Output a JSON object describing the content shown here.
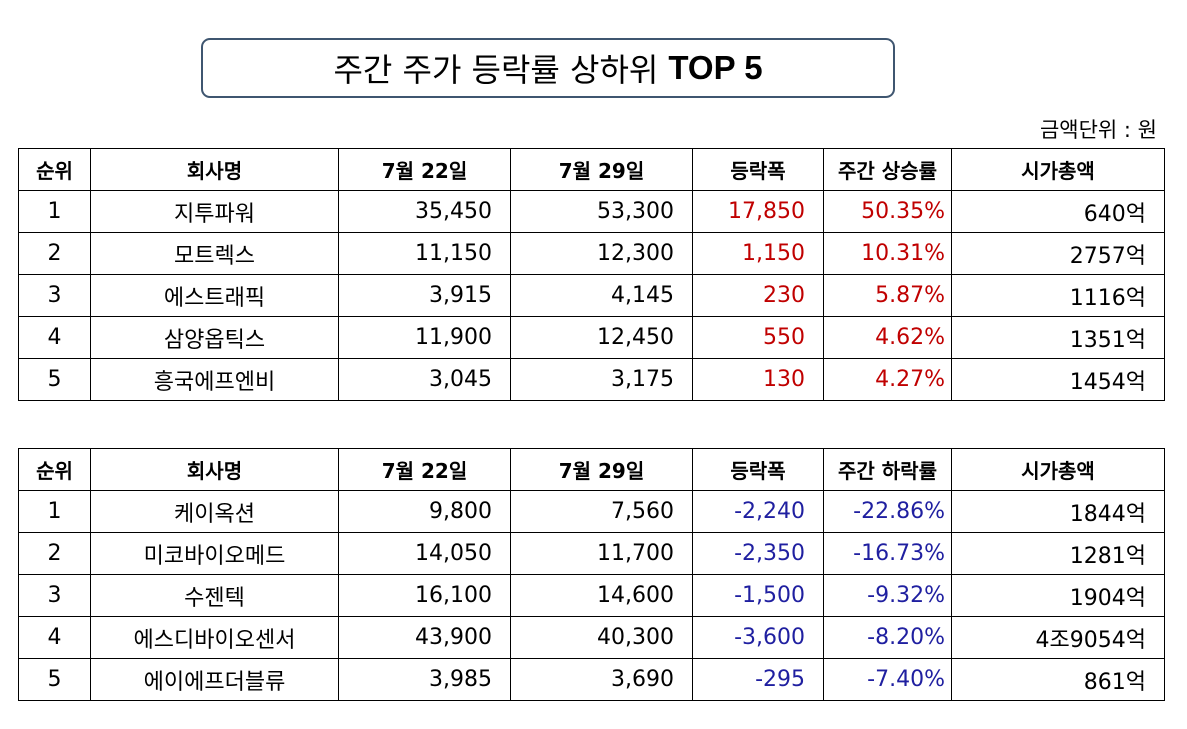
{
  "title": {
    "main": "주간 주가 등락률 상하위",
    "bold": "TOP 5"
  },
  "unit_label": "금액단위 : 원",
  "colors": {
    "up": "#c00000",
    "down": "#1f1fa0",
    "title_border": "#3f5670"
  },
  "top_gainers": {
    "headers": [
      "순위",
      "회사명",
      "7월 22일",
      "7월 29일",
      "등락폭",
      "주간 상승률",
      "시가총액"
    ],
    "rows": [
      [
        "1",
        "지투파워",
        "35,450",
        "53,300",
        "17,850",
        "50.35%",
        "640억"
      ],
      [
        "2",
        "모트렉스",
        "11,150",
        "12,300",
        "1,150",
        "10.31%",
        "2757억"
      ],
      [
        "3",
        "에스트래픽",
        "3,915",
        "4,145",
        "230",
        "5.87%",
        "1116억"
      ],
      [
        "4",
        "삼양옵틱스",
        "11,900",
        "12,450",
        "550",
        "4.62%",
        "1351억"
      ],
      [
        "5",
        "흥국에프엔비",
        "3,045",
        "3,175",
        "130",
        "4.27%",
        "1454억"
      ]
    ]
  },
  "top_losers": {
    "headers": [
      "순위",
      "회사명",
      "7월 22일",
      "7월 29일",
      "등락폭",
      "주간 하락률",
      "시가총액"
    ],
    "rows": [
      [
        "1",
        "케이옥션",
        "9,800",
        "7,560",
        "-2,240",
        "-22.86%",
        "1844억"
      ],
      [
        "2",
        "미코바이오메드",
        "14,050",
        "11,700",
        "-2,350",
        "-16.73%",
        "1281억"
      ],
      [
        "3",
        "수젠텍",
        "16,100",
        "14,600",
        "-1,500",
        "-9.32%",
        "1904억"
      ],
      [
        "4",
        "에스디바이오센서",
        "43,900",
        "40,300",
        "-3,600",
        "-8.20%",
        "4조9054억"
      ],
      [
        "5",
        "에이에프더블류",
        "3,985",
        "3,690",
        "-295",
        "-7.40%",
        "861억"
      ]
    ]
  }
}
